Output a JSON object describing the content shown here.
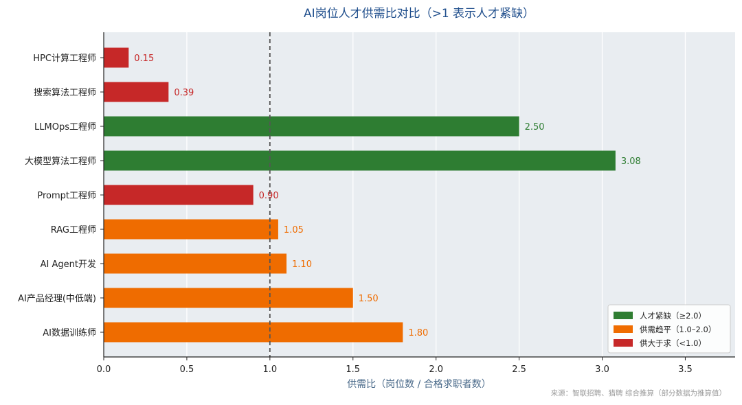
{
  "chart_data": {
    "type": "bar",
    "orientation": "horizontal",
    "title": "AI岗位人才供需比对比（>1 表示人才紧缺）",
    "xlabel": "供需比（岗位数 / 合格求职者数）",
    "xlim": [
      0,
      3.8
    ],
    "xticks": [
      "0.0",
      "0.5",
      "1.0",
      "1.5",
      "2.0",
      "2.5",
      "3.0",
      "3.5"
    ],
    "reference_line": 1.0,
    "grid": "vertical",
    "categories": [
      "HPC计算工程师",
      "搜索算法工程师",
      "LLMOps工程师",
      "大模型算法工程师",
      "Prompt工程师",
      "RAG工程师",
      "AI Agent开发",
      "AI产品经理(中低端)",
      "AI数据训练师"
    ],
    "values": [
      0.15,
      0.39,
      2.5,
      3.08,
      0.9,
      1.05,
      1.1,
      1.5,
      1.8
    ],
    "value_labels": [
      "0.15",
      "0.39",
      "2.50",
      "3.08",
      "0.90",
      "1.05",
      "1.10",
      "1.50",
      "1.80"
    ],
    "groups": [
      "short",
      "short",
      "scarce",
      "scarce",
      "short",
      "balanced",
      "balanced",
      "balanced",
      "balanced"
    ],
    "group_colors": {
      "scarce": "#2e7d32",
      "balanced": "#ef6c00",
      "short": "#c62828"
    },
    "legend": {
      "position": "bottom-right",
      "entries": [
        {
          "label": "人才紧缺（≥2.0）",
          "group": "scarce"
        },
        {
          "label": "供需趋平（1.0–2.0）",
          "group": "balanced"
        },
        {
          "label": "供大于求（<1.0）",
          "group": "short"
        }
      ]
    },
    "source": "来源：智联招聘、猎聘 综合推算（部分数据为推算值）"
  }
}
